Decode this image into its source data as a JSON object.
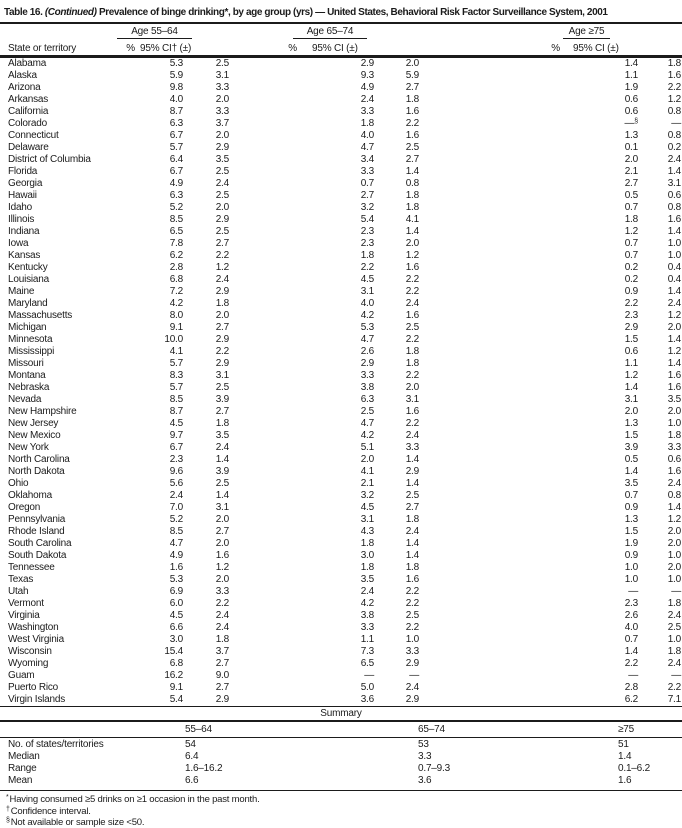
{
  "title": {
    "label": "Table 16.",
    "continued": "(Continued)",
    "text": "Prevalence of binge drinking*, by age group (yrs) — United States, Behavioral Risk Factor Surveillance System, 2001"
  },
  "table": {
    "state_column_header": "State or territory",
    "groups": [
      {
        "label": "Age 55–64",
        "pct_header": "%",
        "ci_header": "95% CI† (±)"
      },
      {
        "label": "Age 65–74",
        "pct_header": "%",
        "ci_header": "95% CI (±)"
      },
      {
        "label": "Age ≥75",
        "pct_header": "%",
        "ci_header": "95% CI (±)"
      }
    ],
    "rows": [
      {
        "state": "Alabama",
        "values": [
          "5.3",
          "2.5",
          "2.9",
          "2.0",
          "1.4",
          "1.8"
        ]
      },
      {
        "state": "Alaska",
        "values": [
          "5.9",
          "3.1",
          "9.3",
          "5.9",
          "1.1",
          "1.6"
        ]
      },
      {
        "state": "Arizona",
        "values": [
          "9.8",
          "3.3",
          "4.9",
          "2.7",
          "1.9",
          "2.2"
        ]
      },
      {
        "state": "Arkansas",
        "values": [
          "4.0",
          "2.0",
          "2.4",
          "1.8",
          "0.6",
          "1.2"
        ]
      },
      {
        "state": "California",
        "values": [
          "8.7",
          "3.3",
          "3.3",
          "1.6",
          "0.6",
          "0.8"
        ]
      },
      {
        "state": "Colorado",
        "values": [
          "6.3",
          "3.7",
          "1.8",
          "2.2",
          "—§",
          "—"
        ]
      },
      {
        "state": "Connecticut",
        "values": [
          "6.7",
          "2.0",
          "4.0",
          "1.6",
          "1.3",
          "0.8"
        ]
      },
      {
        "state": "Delaware",
        "values": [
          "5.7",
          "2.9",
          "4.7",
          "2.5",
          "0.1",
          "0.2"
        ]
      },
      {
        "state": "District of Columbia",
        "values": [
          "6.4",
          "3.5",
          "3.4",
          "2.7",
          "2.0",
          "2.4"
        ]
      },
      {
        "state": "Florida",
        "values": [
          "6.7",
          "2.5",
          "3.3",
          "1.4",
          "2.1",
          "1.4"
        ]
      },
      {
        "state": "Georgia",
        "values": [
          "4.9",
          "2.4",
          "0.7",
          "0.8",
          "2.7",
          "3.1"
        ]
      },
      {
        "state": "Hawaii",
        "values": [
          "6.3",
          "2.5",
          "2.7",
          "1.8",
          "0.5",
          "0.6"
        ]
      },
      {
        "state": "Idaho",
        "values": [
          "5.2",
          "2.0",
          "3.2",
          "1.8",
          "0.7",
          "0.8"
        ]
      },
      {
        "state": "Illinois",
        "values": [
          "8.5",
          "2.9",
          "5.4",
          "4.1",
          "1.8",
          "1.6"
        ]
      },
      {
        "state": "Indiana",
        "values": [
          "6.5",
          "2.5",
          "2.3",
          "1.4",
          "1.2",
          "1.4"
        ]
      },
      {
        "state": "Iowa",
        "values": [
          "7.8",
          "2.7",
          "2.3",
          "2.0",
          "0.7",
          "1.0"
        ]
      },
      {
        "state": "Kansas",
        "values": [
          "6.2",
          "2.2",
          "1.8",
          "1.2",
          "0.7",
          "1.0"
        ]
      },
      {
        "state": "Kentucky",
        "values": [
          "2.8",
          "1.2",
          "2.2",
          "1.6",
          "0.2",
          "0.4"
        ]
      },
      {
        "state": "Louisiana",
        "values": [
          "6.8",
          "2.4",
          "4.5",
          "2.2",
          "0.2",
          "0.4"
        ]
      },
      {
        "state": "Maine",
        "values": [
          "7.2",
          "2.9",
          "3.1",
          "2.2",
          "0.9",
          "1.4"
        ]
      },
      {
        "state": "Maryland",
        "values": [
          "4.2",
          "1.8",
          "4.0",
          "2.4",
          "2.2",
          "2.4"
        ]
      },
      {
        "state": "Massachusetts",
        "values": [
          "8.0",
          "2.0",
          "4.2",
          "1.6",
          "2.3",
          "1.2"
        ]
      },
      {
        "state": "Michigan",
        "values": [
          "9.1",
          "2.7",
          "5.3",
          "2.5",
          "2.9",
          "2.0"
        ]
      },
      {
        "state": "Minnesota",
        "values": [
          "10.0",
          "2.9",
          "4.7",
          "2.2",
          "1.5",
          "1.4"
        ]
      },
      {
        "state": "Mississippi",
        "values": [
          "4.1",
          "2.2",
          "2.6",
          "1.8",
          "0.6",
          "1.2"
        ]
      },
      {
        "state": "Missouri",
        "values": [
          "5.7",
          "2.9",
          "2.9",
          "1.8",
          "1.1",
          "1.4"
        ]
      },
      {
        "state": "Montana",
        "values": [
          "8.3",
          "3.1",
          "3.3",
          "2.2",
          "1.2",
          "1.6"
        ]
      },
      {
        "state": "Nebraska",
        "values": [
          "5.7",
          "2.5",
          "3.8",
          "2.0",
          "1.4",
          "1.6"
        ]
      },
      {
        "state": "Nevada",
        "values": [
          "8.5",
          "3.9",
          "6.3",
          "3.1",
          "3.1",
          "3.5"
        ]
      },
      {
        "state": "New Hampshire",
        "values": [
          "8.7",
          "2.7",
          "2.5",
          "1.6",
          "2.0",
          "2.0"
        ]
      },
      {
        "state": "New Jersey",
        "values": [
          "4.5",
          "1.8",
          "4.7",
          "2.2",
          "1.3",
          "1.0"
        ]
      },
      {
        "state": "New Mexico",
        "values": [
          "9.7",
          "3.5",
          "4.2",
          "2.4",
          "1.5",
          "1.8"
        ]
      },
      {
        "state": "New York",
        "values": [
          "6.7",
          "2.4",
          "5.1",
          "3.3",
          "3.9",
          "3.3"
        ]
      },
      {
        "state": "North Carolina",
        "values": [
          "2.3",
          "1.4",
          "2.0",
          "1.4",
          "0.5",
          "0.6"
        ]
      },
      {
        "state": "North Dakota",
        "values": [
          "9.6",
          "3.9",
          "4.1",
          "2.9",
          "1.4",
          "1.6"
        ]
      },
      {
        "state": "Ohio",
        "values": [
          "5.6",
          "2.5",
          "2.1",
          "1.4",
          "3.5",
          "2.4"
        ]
      },
      {
        "state": "Oklahoma",
        "values": [
          "2.4",
          "1.4",
          "3.2",
          "2.5",
          "0.7",
          "0.8"
        ]
      },
      {
        "state": "Oregon",
        "values": [
          "7.0",
          "3.1",
          "4.5",
          "2.7",
          "0.9",
          "1.4"
        ]
      },
      {
        "state": "Pennsylvania",
        "values": [
          "5.2",
          "2.0",
          "3.1",
          "1.8",
          "1.3",
          "1.2"
        ]
      },
      {
        "state": "Rhode Island",
        "values": [
          "8.5",
          "2.7",
          "4.3",
          "2.4",
          "1.5",
          "2.0"
        ]
      },
      {
        "state": "South Carolina",
        "values": [
          "4.7",
          "2.0",
          "1.8",
          "1.4",
          "1.9",
          "2.0"
        ]
      },
      {
        "state": "South Dakota",
        "values": [
          "4.9",
          "1.6",
          "3.0",
          "1.4",
          "0.9",
          "1.0"
        ]
      },
      {
        "state": "Tennessee",
        "values": [
          "1.6",
          "1.2",
          "1.8",
          "1.8",
          "1.0",
          "2.0"
        ]
      },
      {
        "state": "Texas",
        "values": [
          "5.3",
          "2.0",
          "3.5",
          "1.6",
          "1.0",
          "1.0"
        ]
      },
      {
        "state": "Utah",
        "values": [
          "6.9",
          "3.3",
          "2.4",
          "2.2",
          "—",
          "—"
        ]
      },
      {
        "state": "Vermont",
        "values": [
          "6.0",
          "2.2",
          "4.2",
          "2.2",
          "2.3",
          "1.8"
        ]
      },
      {
        "state": "Virginia",
        "values": [
          "4.5",
          "2.4",
          "3.8",
          "2.5",
          "2.6",
          "2.4"
        ]
      },
      {
        "state": "Washington",
        "values": [
          "6.6",
          "2.4",
          "3.3",
          "2.2",
          "4.0",
          "2.5"
        ]
      },
      {
        "state": "West Virginia",
        "values": [
          "3.0",
          "1.8",
          "1.1",
          "1.0",
          "0.7",
          "1.0"
        ]
      },
      {
        "state": "Wisconsin",
        "values": [
          "15.4",
          "3.7",
          "7.3",
          "3.3",
          "1.4",
          "1.8"
        ]
      },
      {
        "state": "Wyoming",
        "values": [
          "6.8",
          "2.7",
          "6.5",
          "2.9",
          "2.2",
          "2.4"
        ]
      },
      {
        "state": "Guam",
        "values": [
          "16.2",
          "9.0",
          "—",
          "—",
          "—",
          "—"
        ]
      },
      {
        "state": "Puerto Rico",
        "values": [
          "9.1",
          "2.7",
          "5.0",
          "2.4",
          "2.8",
          "2.2"
        ]
      },
      {
        "state": "Virgin Islands",
        "values": [
          "5.4",
          "2.9",
          "3.6",
          "2.9",
          "6.2",
          "7.1"
        ]
      }
    ]
  },
  "summary": {
    "title": "Summary",
    "column_headers": [
      "55–64",
      "65–74",
      "≥75"
    ],
    "rows": [
      {
        "label": "No. of states/territories",
        "values": [
          "54",
          "53",
          "51"
        ]
      },
      {
        "label": "Median",
        "values": [
          "6.4",
          "3.3",
          "1.4"
        ]
      },
      {
        "label": "Range",
        "values": [
          "1.6–16.2",
          "0.7–9.3",
          "0.1–6.2"
        ]
      },
      {
        "label": "Mean",
        "values": [
          "6.6",
          "3.6",
          "1.6"
        ]
      }
    ]
  },
  "footnotes": [
    {
      "marker": "*",
      "text": "Having consumed ≥5 drinks on ≥1 occasion in the past month."
    },
    {
      "marker": "†",
      "text": "Confidence interval."
    },
    {
      "marker": "§",
      "text": "Not available or sample size <50."
    }
  ],
  "colors": {
    "text": "#1b1b1b",
    "rule": "#1b1b1b",
    "background": "#ffffff"
  }
}
